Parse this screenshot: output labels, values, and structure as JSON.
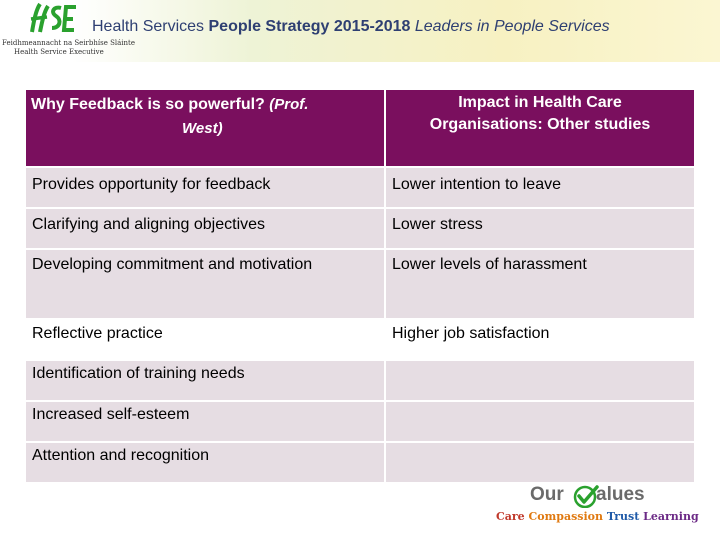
{
  "header": {
    "org_irish_line": "Feidhmeannacht na Seirbhíse Sláinte",
    "org_english_line": "Health Service Executive",
    "title_prefix": "Health Services ",
    "title_bold": "People Strategy 2015-2018 ",
    "title_italic": "Leaders in People Services"
  },
  "table": {
    "col1_header_main": "Why Feedback is so powerful?",
    "col1_header_sub": "(Prof.",
    "col1_header_sub2": "West)",
    "col2_header_line1": "Impact in Health Care",
    "col2_header_line2": "Organisations:  Other studies",
    "rows": [
      {
        "left": "Provides opportunity for feedback",
        "right": "Lower intention to leave"
      },
      {
        "left": "Clarifying and aligning objectives",
        "right": "Lower stress"
      },
      {
        "left": "Developing commitment and motivation",
        "right": "Lower levels of harassment"
      },
      {
        "left": " Reflective practice",
        "right": "Higher job satisfaction"
      },
      {
        "left": "Identification of training needs",
        "right": ""
      },
      {
        "left": "Increased self-esteem",
        "right": ""
      },
      {
        "left": "Attention and recognition",
        "right": ""
      }
    ]
  },
  "values_logo": {
    "our": "Our",
    "alues": "alues",
    "care": "Care",
    "compassion": "Compassion",
    "trust": "Trust",
    "learning": "Learning"
  },
  "colors": {
    "header_bg": "#7a0f5e",
    "row_bg": "#e6dde3",
    "title_blue": "#2e3f72",
    "hse_green": "#2aa12e",
    "care_red": "#c0392b",
    "compassion_orange": "#e07a12",
    "trust_blue": "#1f5aa8",
    "learning_purple": "#6c2a86"
  }
}
